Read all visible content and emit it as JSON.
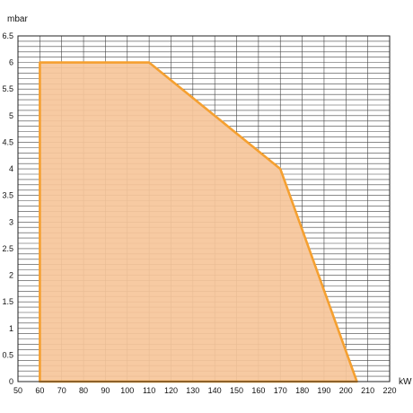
{
  "chart_data": {
    "type": "area",
    "title": "",
    "xlabel": "kW",
    "ylabel": "mbar",
    "xlim": [
      50,
      220
    ],
    "ylim": [
      0,
      6.5
    ],
    "x_ticks": [
      50,
      60,
      70,
      80,
      90,
      100,
      110,
      120,
      130,
      140,
      150,
      160,
      170,
      180,
      190,
      200,
      210,
      220
    ],
    "x_tick_labels": [
      "50",
      "60",
      "70",
      "80",
      "90",
      "100",
      "110",
      "120",
      "130",
      "140",
      "150",
      "160",
      "170",
      "180",
      "190",
      "200",
      "210",
      "220"
    ],
    "y_ticks": [
      0,
      0.5,
      1,
      1.5,
      2,
      2.5,
      3,
      3.5,
      4,
      4.5,
      5,
      5.5,
      6,
      6.5
    ],
    "y_tick_labels": [
      "0",
      "0.5",
      "1",
      "1.5",
      "2",
      "2.5",
      "3",
      "3.5",
      "4",
      "4.5",
      "5",
      "5.5",
      "6",
      "6.5"
    ],
    "grid": true,
    "minor_y_step": 0.1,
    "series": [
      {
        "x": [
          60,
          60,
          110,
          170,
          205,
          60
        ],
        "y": [
          0,
          6,
          6,
          4,
          0,
          0
        ],
        "fill_color": "#f6c69a",
        "line_color": "#f5a030"
      }
    ]
  }
}
